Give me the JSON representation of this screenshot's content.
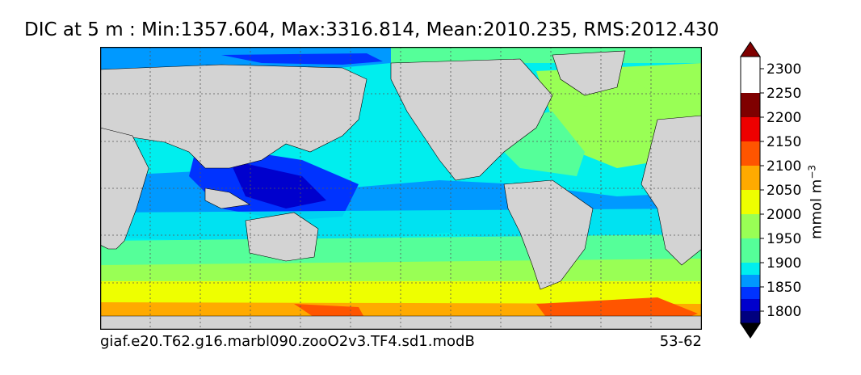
{
  "title": "DIC at 5 m : Min:1357.604, Max:3316.814, Mean:2010.235, RMS:2012.430",
  "footer": {
    "case_name": "giaf.e20.T62.g16.marbl090.zooO2v3.TF4.sd1.modB",
    "years": "53-62"
  },
  "colorbar": {
    "label": "mmol m",
    "label_exponent": "−3",
    "ticks": [
      "1800",
      "1850",
      "1900",
      "1950",
      "2000",
      "2050",
      "2100",
      "2150",
      "2200",
      "2250",
      "2300"
    ]
  },
  "chart_data": {
    "type": "heatmap",
    "title": "DIC at 5 m : Min:1357.604, Max:3316.814, Mean:2010.235, RMS:2012.430",
    "variable": "DIC",
    "depth": "5 m",
    "stats": {
      "min": 1357.604,
      "max": 3316.814,
      "mean": 2010.235,
      "rms": 2012.43
    },
    "units": "mmol m−3",
    "levels": [
      1775,
      1800,
      1825,
      1850,
      1875,
      1900,
      1950,
      2000,
      2050,
      2100,
      2150,
      2200,
      2250,
      2300,
      2325
    ],
    "colors": [
      "#00007f",
      "#0000cd",
      "#0033ff",
      "#0099ff",
      "#00eeee",
      "#55ff99",
      "#99ff55",
      "#eeff00",
      "#ffaa00",
      "#ff5500",
      "#ee0000",
      "#7f0000"
    ],
    "land_color": "#d3d3d3",
    "grid": true,
    "extend": "both"
  }
}
